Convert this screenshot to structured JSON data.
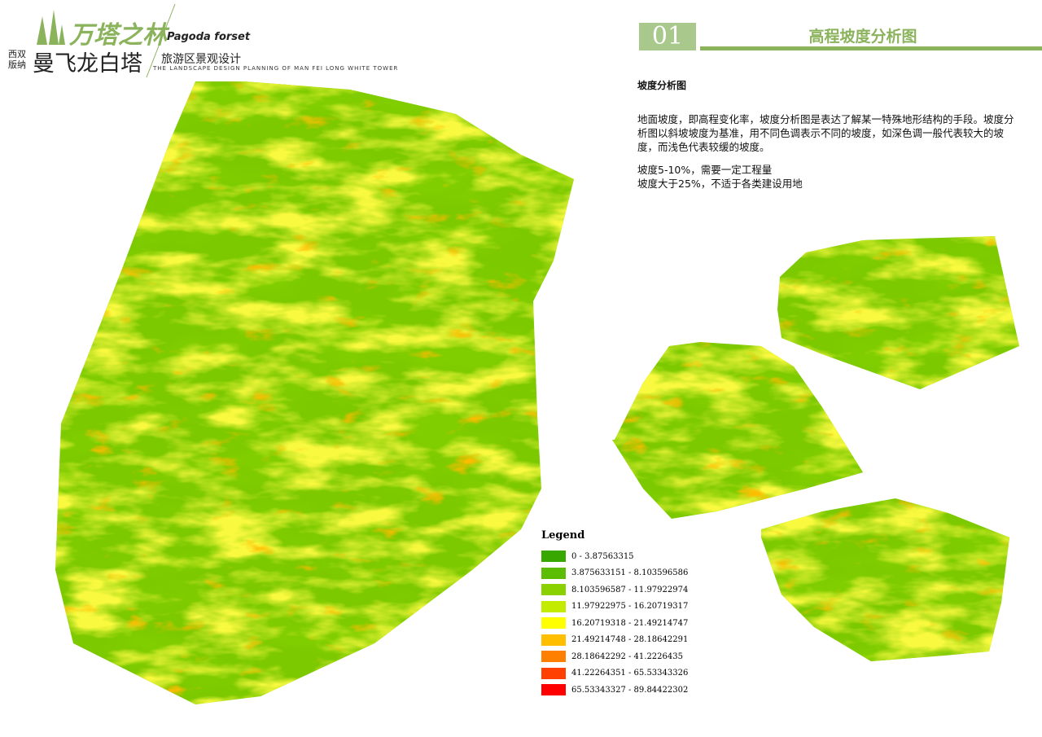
{
  "header": {
    "logo_title": "万塔之林",
    "logo_subtitle": "Pagoda forset",
    "region": [
      "西双",
      "版纳"
    ],
    "project": "曼飞龙白塔",
    "project_type": "旅游区景观设计",
    "english": "THE LANDSCAPE DESIGN PLANNING OF MAN FEI  LONG WHITE TOWER",
    "page_number": "01",
    "page_title": "高程坡度分析图"
  },
  "text": {
    "heading": "坡度分析图",
    "paragraph": "地面坡度，即高程变化率，坡度分析图是表达了解某一特殊地形结构的手段。坡度分析图以斜坡坡度为基准，用不同色调表示不同的坡度，如深色调一般代表较大的坡度，而浅色代表较缓的坡度。",
    "notes": [
      "坡度5-10%，需要一定工程量",
      "坡度大于25%，不适于各类建设用地"
    ]
  },
  "legend": {
    "title": "Legend",
    "classes": [
      {
        "label": "0 - 3.87563315",
        "color": "#38a800"
      },
      {
        "label": "3.875633151 - 8.103596586",
        "color": "#5cbd00"
      },
      {
        "label": "8.103596587 - 11.97922974",
        "color": "#8bd100"
      },
      {
        "label": "11.97922975 - 16.20719317",
        "color": "#c3eb00"
      },
      {
        "label": "16.20719318 - 21.49214747",
        "color": "#ffff00"
      },
      {
        "label": "21.49214748 - 28.18642291",
        "color": "#ffbf00"
      },
      {
        "label": "28.18642292 - 41.2226435",
        "color": "#ff8000"
      },
      {
        "label": "41.22264351 - 65.53343326",
        "color": "#ff4000"
      },
      {
        "label": "65.53343327 - 89.84422302",
        "color": "#ff0000"
      }
    ]
  }
}
